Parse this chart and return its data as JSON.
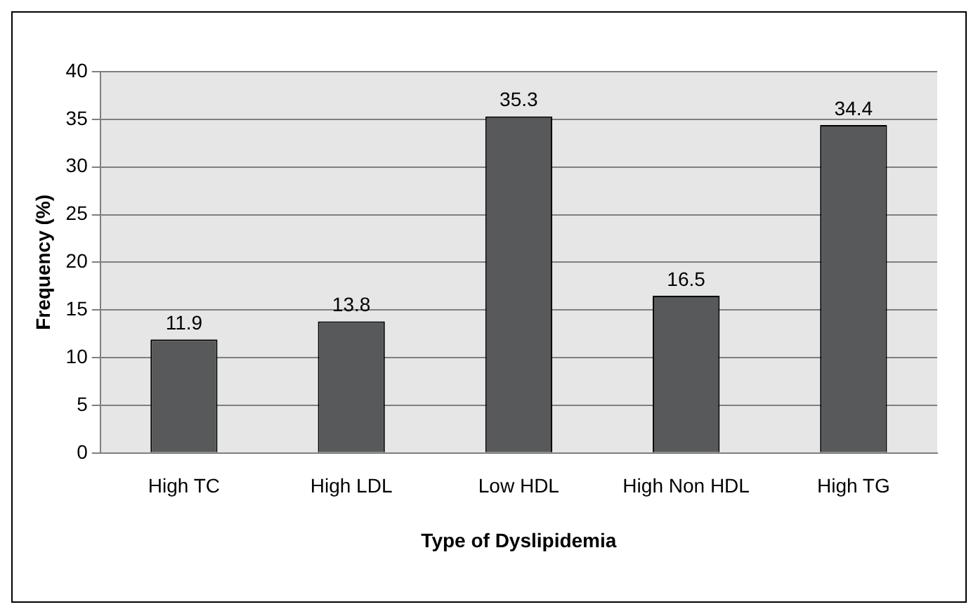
{
  "chart_data": {
    "type": "bar",
    "xlabel": "Type of Dyslipidemia",
    "ylabel": "Frequency (%)",
    "categories": [
      "High TC",
      "High LDL",
      "Low HDL",
      "High Non HDL",
      "High TG"
    ],
    "values": [
      11.9,
      13.8,
      35.3,
      16.5,
      34.4
    ],
    "color": "#58595b",
    "ylim": [
      0,
      40
    ],
    "yticks": [
      0,
      5,
      10,
      15,
      20,
      25,
      30,
      35,
      40
    ],
    "grid": "y",
    "data_labels": true
  }
}
